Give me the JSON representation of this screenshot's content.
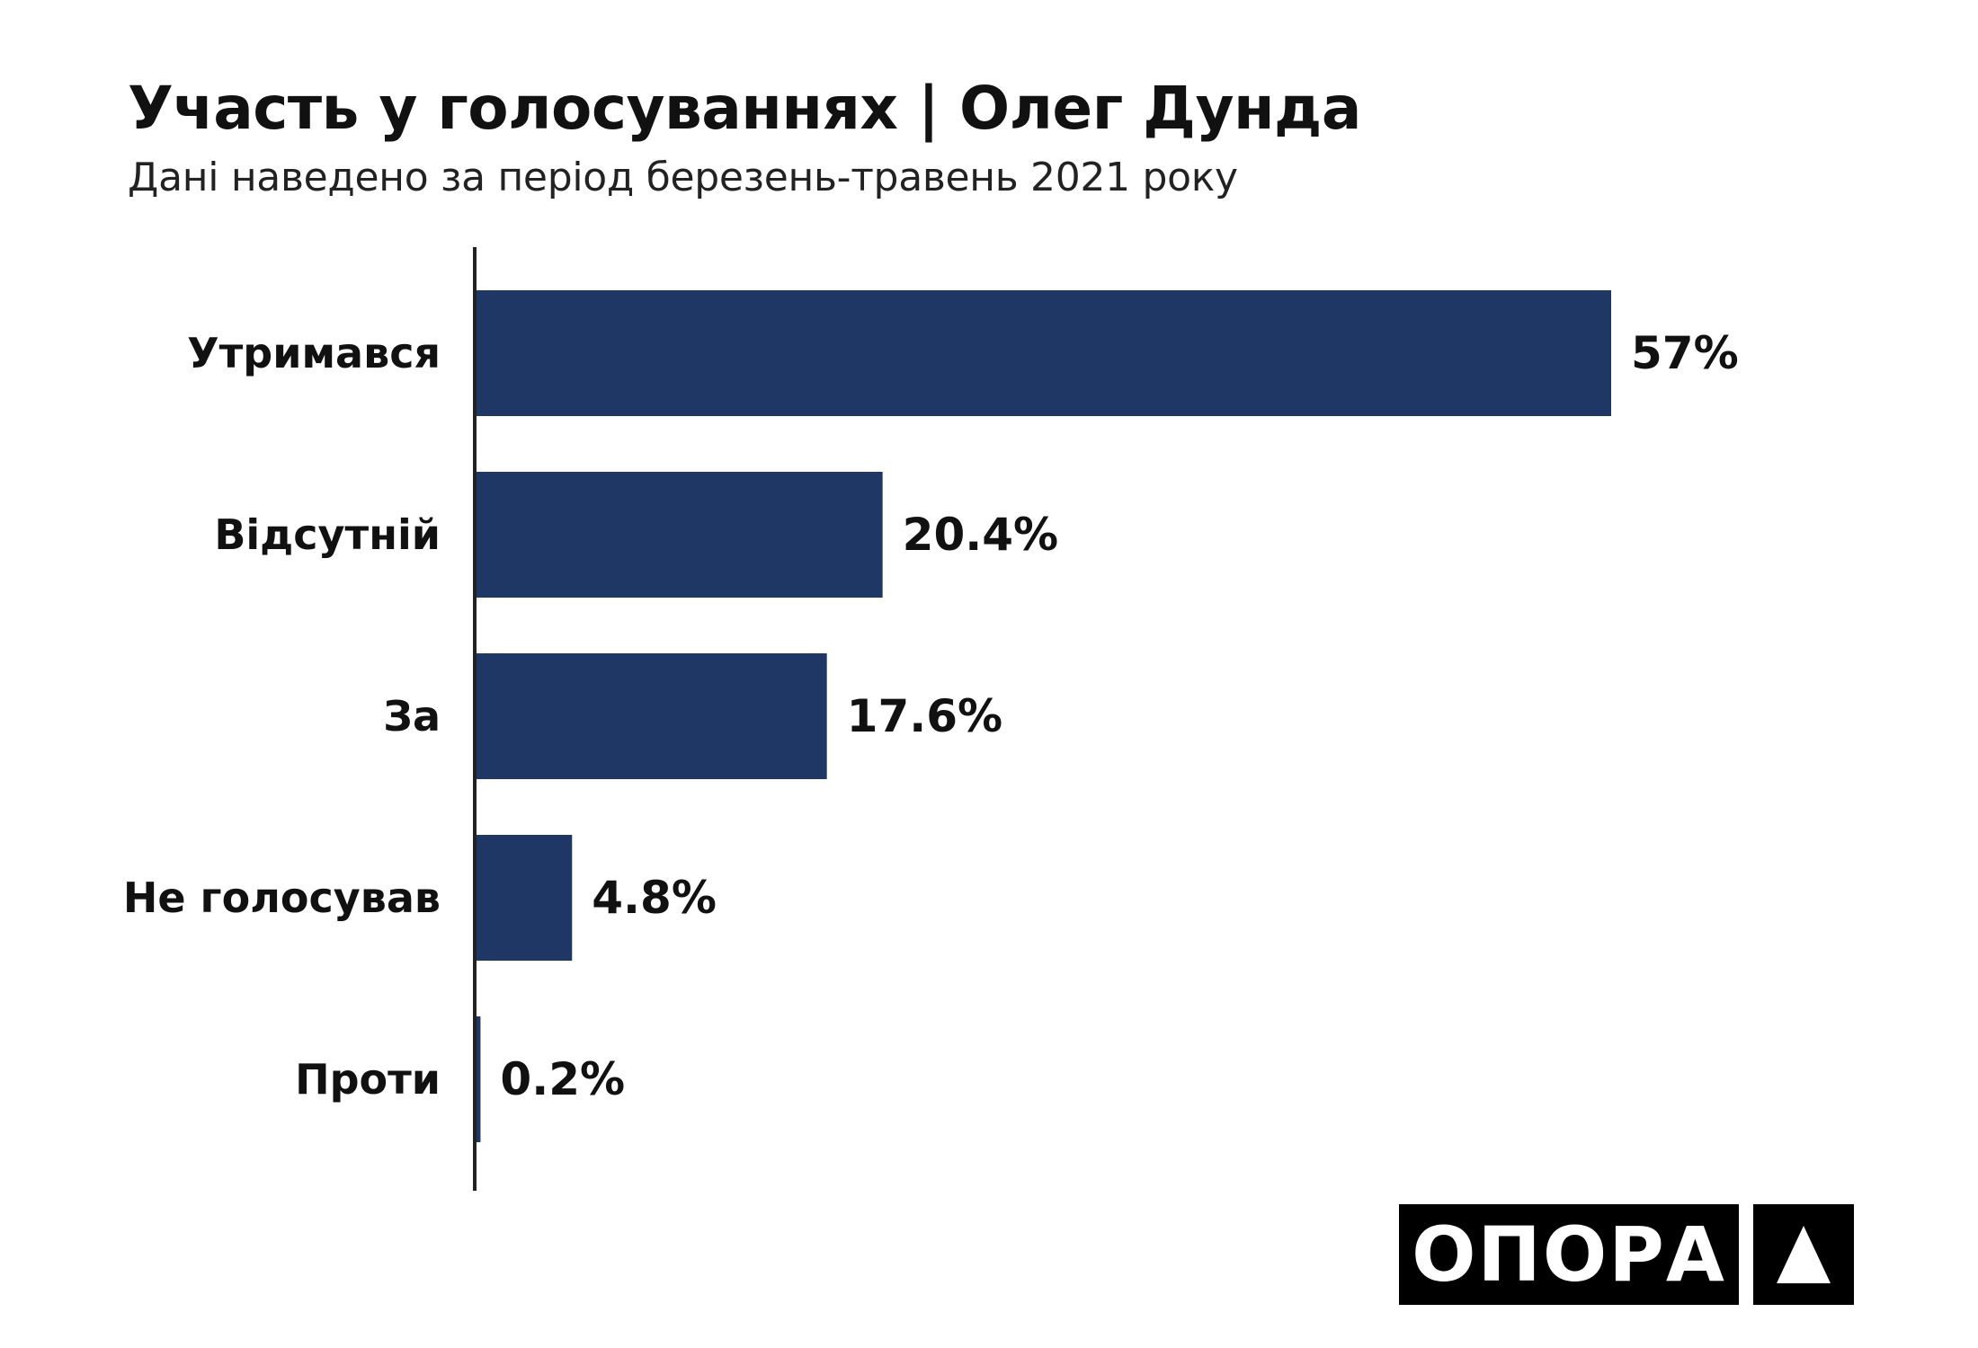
{
  "header": {
    "title": "Участь у голосуваннях | Олег Дунда",
    "subtitle": "Дані наведено за період березень-травень 2021 року"
  },
  "logo": {
    "text": "ОПОРА",
    "icon": "triangle-up-icon"
  },
  "colors": {
    "bar": "#1f3765",
    "text": "#111111",
    "axis": "#222222",
    "logo_bg": "#000000",
    "logo_fg": "#ffffff"
  },
  "chart_data": {
    "type": "bar",
    "orientation": "horizontal",
    "title": "Участь у голосуваннях | Олег Дунда",
    "subtitle": "Дані наведено за період березень-травень 2021 року",
    "categories": [
      "Утримався",
      "Відсутній",
      "За",
      "Не голосував",
      "Проти"
    ],
    "values": [
      57,
      20.4,
      17.6,
      4.8,
      0.2
    ],
    "value_labels": [
      "57%",
      "20.4%",
      "17.6%",
      "4.8%",
      "0.2%"
    ],
    "unit": "%",
    "xlim": [
      0,
      57
    ],
    "grid": false,
    "legend": "none"
  }
}
